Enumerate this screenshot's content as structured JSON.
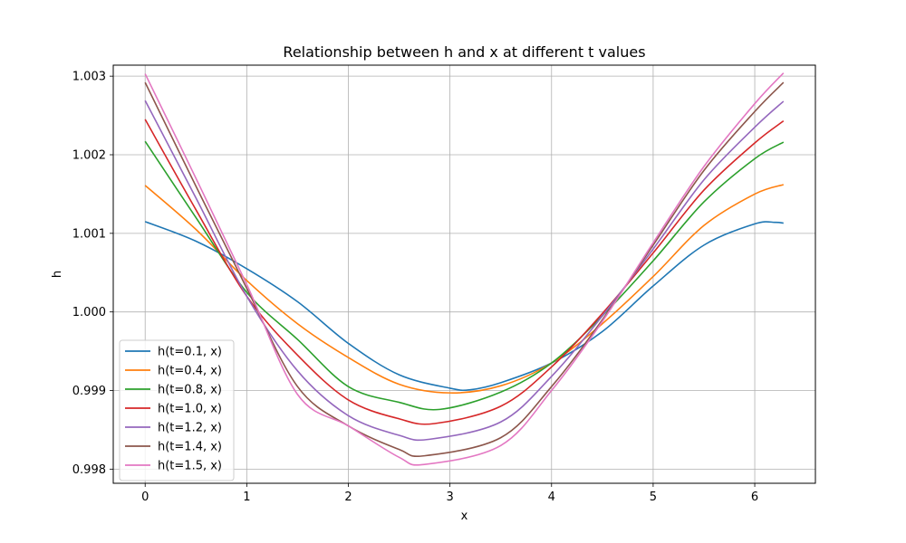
{
  "chart_data": {
    "type": "line",
    "title": "Relationship between h and x at different t values",
    "xlabel": "x",
    "ylabel": "h",
    "xlim": [
      -0.314,
      6.597
    ],
    "ylim": [
      0.99782,
      1.00314
    ],
    "xticks": [
      0,
      1,
      2,
      3,
      4,
      5,
      6
    ],
    "xtick_labels": [
      "0",
      "1",
      "2",
      "3",
      "4",
      "5",
      "6"
    ],
    "yticks": [
      0.998,
      0.999,
      1.0,
      1.001,
      1.002,
      1.003
    ],
    "ytick_labels": [
      "0.998",
      "0.999",
      "1.000",
      "1.001",
      "1.002",
      "1.003"
    ],
    "grid": true,
    "legend_position": "lower-left",
    "series": [
      {
        "name": "h(t=0.1, x)",
        "color": "#1f77b4",
        "x": [
          0,
          0.5,
          1.0,
          1.5,
          2.0,
          2.5,
          3.0,
          3.2,
          3.5,
          4.0,
          4.5,
          5.0,
          5.5,
          6.0,
          6.2,
          6.283
        ],
        "y": [
          1.00115,
          1.0009,
          1.00055,
          1.00013,
          0.9996,
          0.9992,
          0.99903,
          0.99901,
          0.9991,
          0.99935,
          0.99975,
          1.00033,
          1.00085,
          1.00112,
          1.00114,
          1.00113
        ]
      },
      {
        "name": "h(t=0.4, x)",
        "color": "#ff7f0e",
        "x": [
          0,
          0.5,
          1.0,
          1.5,
          2.0,
          2.5,
          3.0,
          3.5,
          4.0,
          4.5,
          5.0,
          5.5,
          6.0,
          6.283
        ],
        "y": [
          1.00161,
          1.00105,
          1.0004,
          0.99985,
          0.99942,
          0.99908,
          0.99897,
          0.99906,
          0.99935,
          0.99985,
          1.00045,
          1.0011,
          1.0015,
          1.00162
        ]
      },
      {
        "name": "h(t=0.8, x)",
        "color": "#2ca02c",
        "x": [
          0,
          0.5,
          1.0,
          1.5,
          2.0,
          2.5,
          2.9,
          3.5,
          4.0,
          4.5,
          5.0,
          5.5,
          6.0,
          6.283
        ],
        "y": [
          1.00217,
          1.0012,
          1.00025,
          0.99965,
          0.99905,
          0.99885,
          0.99876,
          0.99898,
          0.99935,
          0.99995,
          1.00065,
          1.0014,
          1.00195,
          1.00216
        ]
      },
      {
        "name": "h(t=1.0, x)",
        "color": "#d62728",
        "x": [
          0,
          0.5,
          1.0,
          1.5,
          2.0,
          2.5,
          2.85,
          3.5,
          4.0,
          4.5,
          5.0,
          5.5,
          6.0,
          6.283
        ],
        "y": [
          1.00245,
          1.0013,
          1.0002,
          0.99945,
          0.99888,
          0.99864,
          0.99858,
          0.9988,
          0.9993,
          0.99998,
          1.00075,
          1.00155,
          1.00215,
          1.00243
        ]
      },
      {
        "name": "h(t=1.2, x)",
        "color": "#9467bd",
        "x": [
          0,
          0.5,
          1.0,
          1.5,
          2.0,
          2.5,
          2.8,
          3.5,
          4.0,
          4.5,
          5.0,
          5.5,
          6.0,
          6.283
        ],
        "y": [
          1.00269,
          1.00145,
          1.0002,
          0.99925,
          0.99868,
          0.99843,
          0.99838,
          0.9986,
          0.99918,
          0.99995,
          1.0008,
          1.00168,
          1.00235,
          1.00268
        ]
      },
      {
        "name": "h(t=1.4, x)",
        "color": "#8c564b",
        "x": [
          0,
          0.5,
          1.0,
          1.5,
          2.0,
          2.5,
          2.75,
          3.5,
          4.0,
          4.5,
          5.0,
          5.5,
          6.0,
          6.283
        ],
        "y": [
          1.00292,
          1.0016,
          1.0003,
          0.99905,
          0.99855,
          0.99825,
          0.99817,
          0.9984,
          0.99905,
          0.9999,
          1.00085,
          1.0018,
          1.00255,
          1.00292
        ]
      },
      {
        "name": "h(t=1.5, x)",
        "color": "#e377c2",
        "x": [
          0,
          0.5,
          1.0,
          1.5,
          2.0,
          2.5,
          2.75,
          3.5,
          4.0,
          4.5,
          5.0,
          5.5,
          6.0,
          6.283
        ],
        "y": [
          1.00303,
          1.0017,
          1.00035,
          0.99895,
          0.99855,
          0.99815,
          0.99806,
          0.9983,
          0.999,
          0.99988,
          1.00088,
          1.00185,
          1.00265,
          1.00304
        ]
      }
    ]
  }
}
